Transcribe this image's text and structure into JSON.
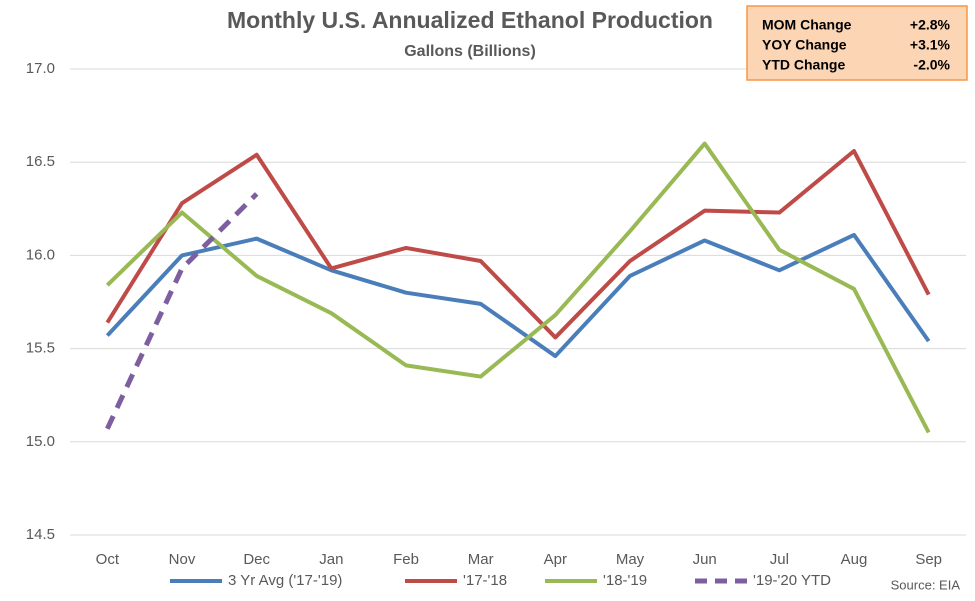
{
  "chart_data": {
    "type": "line",
    "title": "Monthly U.S. Annualized Ethanol Production",
    "subtitle": "Gallons (Billions)",
    "categories": [
      "Oct",
      "Nov",
      "Dec",
      "Jan",
      "Feb",
      "Mar",
      "Apr",
      "May",
      "Jun",
      "Jul",
      "Aug",
      "Sep"
    ],
    "series": [
      {
        "name": "3 Yr Avg ('17-'19)",
        "color": "#4a7ebb",
        "values": [
          15.57,
          16.0,
          16.09,
          15.92,
          15.8,
          15.74,
          15.46,
          15.89,
          16.08,
          15.92,
          16.11,
          15.54
        ]
      },
      {
        "name": "'17-'18",
        "color": "#be4b48",
        "values": [
          15.64,
          16.28,
          16.54,
          15.93,
          16.04,
          15.97,
          15.56,
          15.97,
          16.24,
          16.23,
          16.56,
          15.79
        ]
      },
      {
        "name": "'18-'19",
        "color": "#98b954",
        "values": [
          15.84,
          16.23,
          15.89,
          15.69,
          15.41,
          15.35,
          15.68,
          16.13,
          16.6,
          16.03,
          15.82,
          15.05
        ]
      },
      {
        "name": "'19-'20 YTD",
        "color": "#7d5fa0",
        "dashed": true,
        "values": [
          15.07,
          15.93,
          16.33,
          null,
          null,
          null,
          null,
          null,
          null,
          null,
          null,
          null
        ]
      }
    ],
    "ylim": [
      14.5,
      17.0
    ],
    "yticks": [
      {
        "value": 14.5,
        "label": "14.5"
      },
      {
        "value": 15.0,
        "label": "15.0"
      },
      {
        "value": 15.5,
        "label": "15.5"
      },
      {
        "value": 16.0,
        "label": "16.0"
      },
      {
        "value": 16.5,
        "label": "16.5"
      },
      {
        "value": 17.0,
        "label": "17.0"
      }
    ],
    "grid": true,
    "legend": "bottom",
    "summary": [
      {
        "label": "MOM Change",
        "value": "+2.8%"
      },
      {
        "label": "YOY Change",
        "value": "+3.1%"
      },
      {
        "label": "YTD Change",
        "value": "-2.0%"
      }
    ],
    "source": "Source: EIA"
  }
}
